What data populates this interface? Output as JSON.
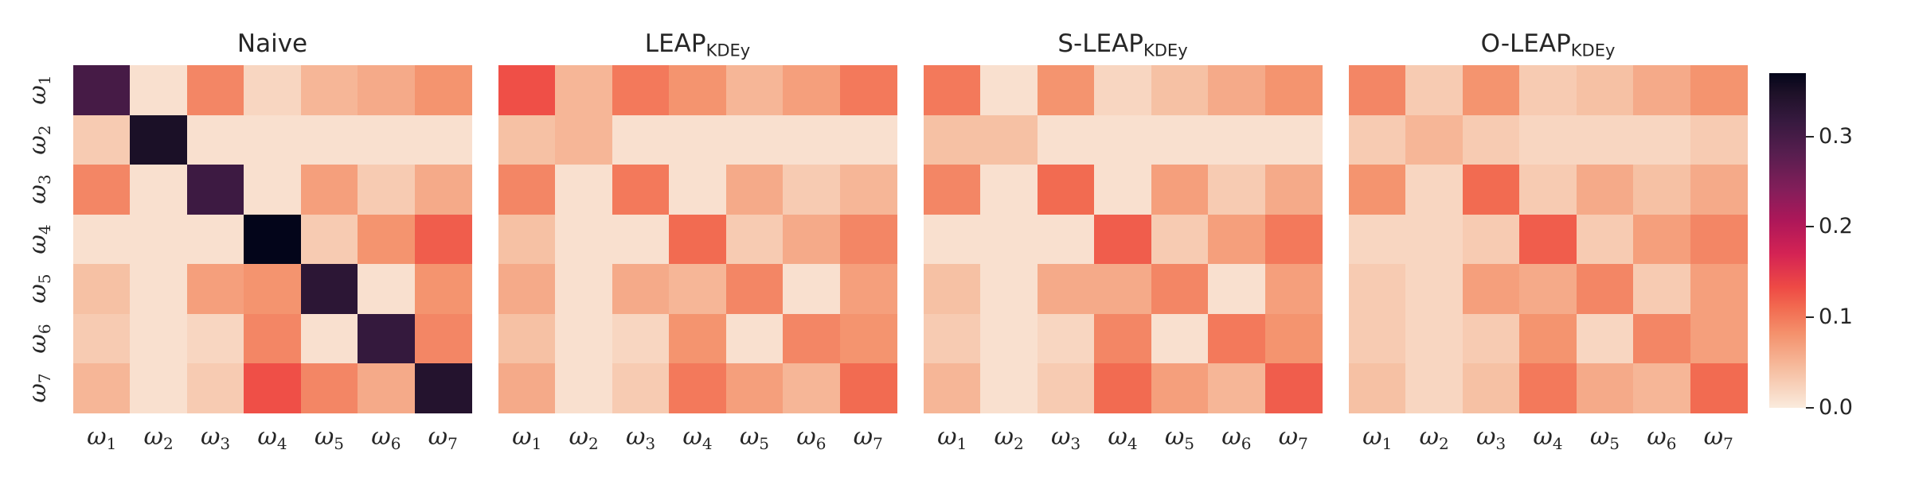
{
  "chart_data": {
    "type": "heatmap",
    "row_labels": [
      "1",
      "2",
      "3",
      "4",
      "5",
      "6",
      "7"
    ],
    "col_labels": [
      "1",
      "2",
      "3",
      "4",
      "5",
      "6",
      "7"
    ],
    "axis_symbol": "ω",
    "color_range": [
      0.0,
      0.37
    ],
    "colorbar_ticks": [
      {
        "value": 0.0,
        "label": "0.0"
      },
      {
        "value": 0.1,
        "label": "0.1"
      },
      {
        "value": 0.2,
        "label": "0.2"
      },
      {
        "value": 0.3,
        "label": "0.3"
      }
    ],
    "panels": [
      {
        "title": "Naive",
        "title_sub": "",
        "values": [
          [
            0.3,
            0.01,
            0.09,
            0.02,
            0.05,
            0.06,
            0.08
          ],
          [
            0.03,
            0.35,
            0.01,
            0.01,
            0.01,
            0.01,
            0.01
          ],
          [
            0.09,
            0.01,
            0.31,
            0.01,
            0.07,
            0.03,
            0.06
          ],
          [
            0.01,
            0.01,
            0.01,
            0.37,
            0.03,
            0.08,
            0.12
          ],
          [
            0.04,
            0.01,
            0.07,
            0.08,
            0.33,
            0.01,
            0.08
          ],
          [
            0.03,
            0.01,
            0.02,
            0.09,
            0.01,
            0.32,
            0.09
          ],
          [
            0.05,
            0.01,
            0.03,
            0.13,
            0.09,
            0.06,
            0.34
          ]
        ]
      },
      {
        "title": "LEAP",
        "title_sub": "KDEy",
        "values": [
          [
            0.13,
            0.05,
            0.1,
            0.08,
            0.05,
            0.07,
            0.1
          ],
          [
            0.04,
            0.05,
            0.01,
            0.01,
            0.01,
            0.01,
            0.01
          ],
          [
            0.09,
            0.01,
            0.1,
            0.01,
            0.06,
            0.03,
            0.05
          ],
          [
            0.04,
            0.01,
            0.01,
            0.11,
            0.03,
            0.06,
            0.09
          ],
          [
            0.06,
            0.01,
            0.06,
            0.05,
            0.09,
            0.01,
            0.07
          ],
          [
            0.04,
            0.01,
            0.02,
            0.08,
            0.01,
            0.09,
            0.08
          ],
          [
            0.06,
            0.01,
            0.03,
            0.1,
            0.07,
            0.05,
            0.11
          ]
        ]
      },
      {
        "title": "S-LEAP",
        "title_sub": "KDEy",
        "values": [
          [
            0.1,
            0.01,
            0.08,
            0.02,
            0.04,
            0.06,
            0.08
          ],
          [
            0.04,
            0.04,
            0.01,
            0.01,
            0.01,
            0.01,
            0.01
          ],
          [
            0.09,
            0.01,
            0.11,
            0.01,
            0.07,
            0.03,
            0.06
          ],
          [
            0.01,
            0.01,
            0.01,
            0.12,
            0.03,
            0.07,
            0.1
          ],
          [
            0.04,
            0.01,
            0.06,
            0.06,
            0.09,
            0.01,
            0.07
          ],
          [
            0.03,
            0.01,
            0.02,
            0.09,
            0.01,
            0.1,
            0.08
          ],
          [
            0.05,
            0.01,
            0.03,
            0.11,
            0.07,
            0.05,
            0.12
          ]
        ]
      },
      {
        "title": "O-LEAP",
        "title_sub": "KDEy",
        "values": [
          [
            0.09,
            0.03,
            0.08,
            0.03,
            0.04,
            0.06,
            0.08
          ],
          [
            0.03,
            0.05,
            0.03,
            0.02,
            0.02,
            0.02,
            0.03
          ],
          [
            0.08,
            0.02,
            0.11,
            0.03,
            0.06,
            0.04,
            0.06
          ],
          [
            0.02,
            0.02,
            0.03,
            0.12,
            0.03,
            0.07,
            0.09
          ],
          [
            0.03,
            0.02,
            0.07,
            0.06,
            0.09,
            0.03,
            0.07
          ],
          [
            0.03,
            0.02,
            0.03,
            0.08,
            0.02,
            0.09,
            0.07
          ],
          [
            0.04,
            0.02,
            0.04,
            0.1,
            0.06,
            0.05,
            0.11
          ]
        ]
      }
    ]
  }
}
